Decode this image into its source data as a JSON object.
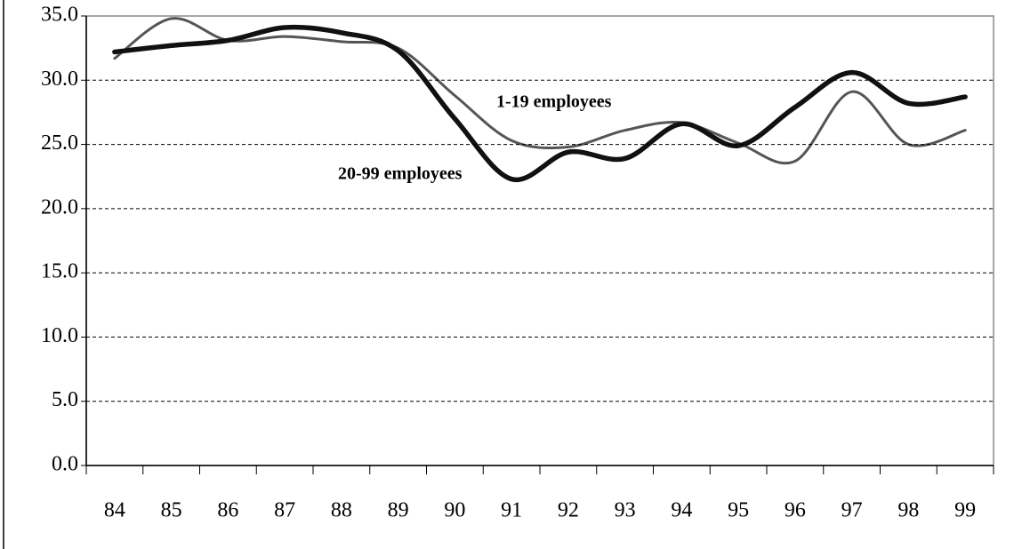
{
  "chart_data": {
    "type": "line",
    "categories": [
      "84",
      "85",
      "86",
      "87",
      "88",
      "89",
      "90",
      "91",
      "92",
      "93",
      "94",
      "95",
      "96",
      "97",
      "98",
      "99"
    ],
    "series": [
      {
        "name": "1-19 employees",
        "color": "#555555",
        "values": [
          31.7,
          34.8,
          33.1,
          33.4,
          33.0,
          32.5,
          28.8,
          25.3,
          24.8,
          26.1,
          26.7,
          25.1,
          23.7,
          29.1,
          25.0,
          26.1
        ]
      },
      {
        "name": "20-99 employees",
        "color": "#111111",
        "values": [
          32.2,
          32.7,
          33.1,
          34.1,
          33.7,
          32.3,
          27.0,
          22.3,
          24.4,
          23.9,
          26.6,
          24.9,
          27.9,
          30.6,
          28.2,
          28.7
        ]
      }
    ],
    "ylim": [
      0,
      35
    ],
    "yticks": [
      {
        "value": 0,
        "label": "0.0"
      },
      {
        "value": 5,
        "label": "5.0"
      },
      {
        "value": 10,
        "label": "10.0"
      },
      {
        "value": 15,
        "label": "15.0"
      },
      {
        "value": 20,
        "label": "20.0"
      },
      {
        "value": 25,
        "label": "25.0"
      },
      {
        "value": 30,
        "label": "30.0"
      },
      {
        "value": 35,
        "label": "35.0"
      }
    ],
    "grid": true
  }
}
